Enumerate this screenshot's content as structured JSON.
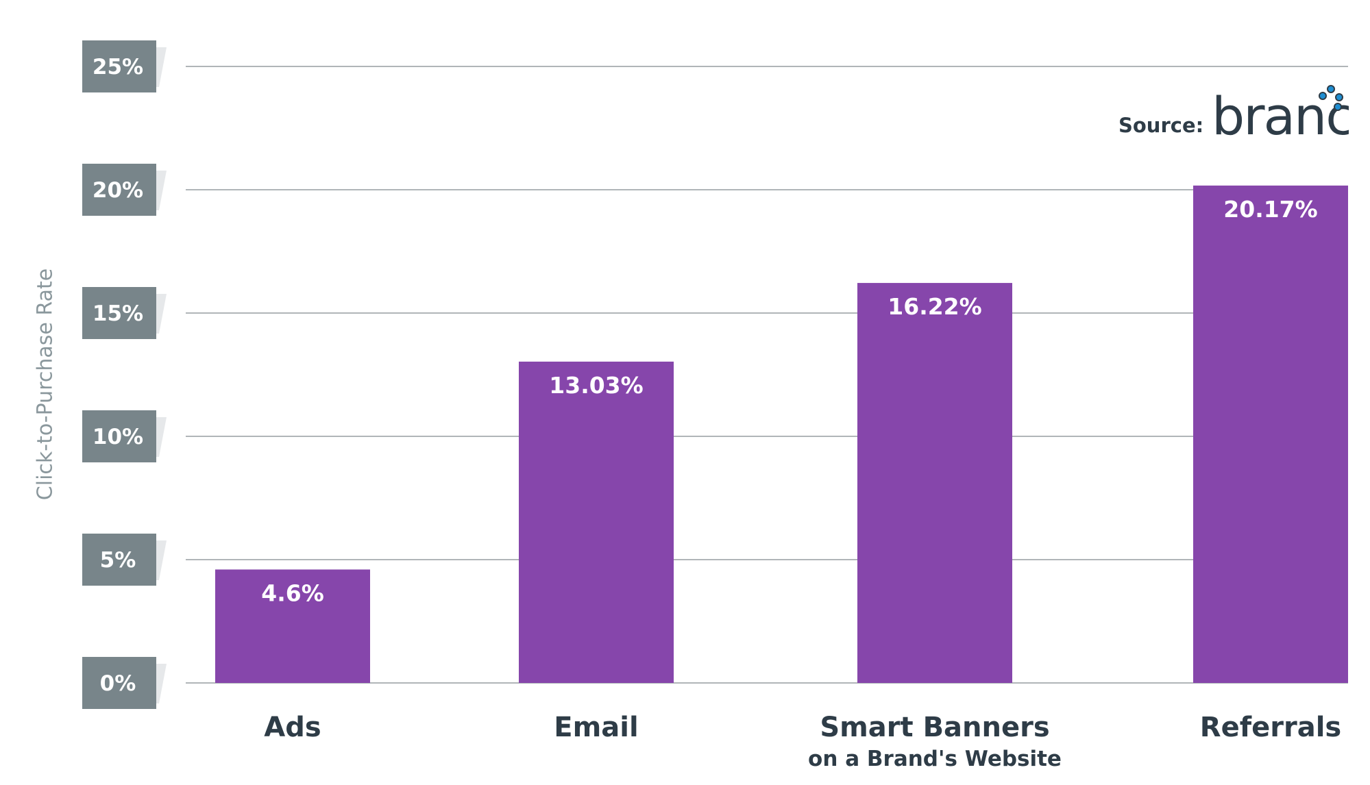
{
  "chart_data": {
    "type": "bar",
    "categories": [
      "Ads",
      "Email",
      "Smart Banners",
      "Referrals"
    ],
    "category_sublabels": [
      "",
      "",
      "on a Brand's Website",
      ""
    ],
    "values": [
      4.6,
      13.03,
      16.22,
      20.17
    ],
    "data_labels": [
      "4.6%",
      "13.03%",
      "16.22%",
      "20.17%"
    ],
    "title": "",
    "xlabel": "",
    "ylabel": "Click-to-Purchase Rate",
    "ylim": [
      0,
      25
    ],
    "yticks": [
      0,
      5,
      10,
      15,
      20,
      25
    ],
    "ytick_labels": [
      "0%",
      "5%",
      "10%",
      "15%",
      "20%",
      "25%"
    ],
    "grid": true,
    "legend": "none",
    "colors": {
      "bar": "#8646ab",
      "tick_box": "#78858a",
      "text": "#2e3c47",
      "grid": "#b0b5b8",
      "logo_dots": "#1e8ed2"
    }
  },
  "source": {
    "label": "Source:",
    "logo_text": "branch"
  }
}
